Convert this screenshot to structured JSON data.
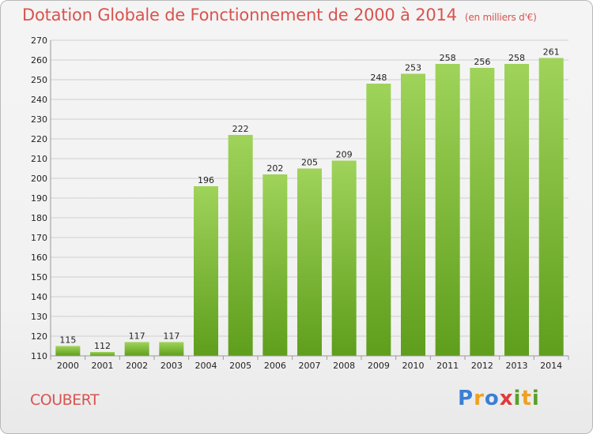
{
  "header": {
    "title": "Dotation Globale de Fonctionnement de 2000 à 2014",
    "subtitle": "(en milliers d'€)"
  },
  "commune": "COUBERT",
  "logo": {
    "text": "Proxiti",
    "letters": [
      {
        "char": "P",
        "color": "#3a7fd5"
      },
      {
        "char": "r",
        "color": "#f0a020"
      },
      {
        "char": "o",
        "color": "#3a7fd5"
      },
      {
        "char": "x",
        "color": "#e03a3a"
      },
      {
        "char": "i",
        "color": "#5aa02c"
      },
      {
        "char": "t",
        "color": "#f0a020"
      },
      {
        "char": "i",
        "color": "#5aa02c"
      }
    ]
  },
  "colors": {
    "accent": "#d9534f",
    "bar_top": "#9fd35a",
    "bar_bottom": "#5f9e1c",
    "grid": "#cfcfcf",
    "axis_text": "#222222"
  },
  "chart_data": {
    "type": "bar",
    "categories": [
      "2000",
      "2001",
      "2002",
      "2003",
      "2004",
      "2005",
      "2006",
      "2007",
      "2008",
      "2009",
      "2010",
      "2011",
      "2012",
      "2013",
      "2014"
    ],
    "values": [
      115,
      112,
      117,
      117,
      196,
      222,
      202,
      205,
      209,
      248,
      253,
      258,
      256,
      258,
      261
    ],
    "title": "Dotation Globale de Fonctionnement de 2000 à 2014",
    "subtitle": "(en milliers d'€)",
    "xlabel": "",
    "ylabel": "",
    "ylim": [
      110,
      270
    ],
    "ytick_step": 10,
    "grid": true,
    "legend": "none"
  }
}
